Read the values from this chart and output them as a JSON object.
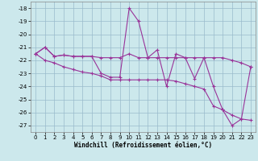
{
  "xlabel": "Windchill (Refroidissement éolien,°C)",
  "bg_color": "#cce8ec",
  "line_color": "#993399",
  "grid_color": "#99bbcc",
  "x_hours": [
    0,
    1,
    2,
    3,
    4,
    5,
    6,
    7,
    8,
    9,
    10,
    11,
    12,
    13,
    14,
    15,
    16,
    17,
    18,
    19,
    20,
    21,
    22,
    23
  ],
  "line_flat_y": [
    -21.5,
    -21.0,
    -21.7,
    -21.6,
    -21.7,
    -21.7,
    -21.7,
    -21.8,
    -21.8,
    -21.8,
    -21.5,
    -21.8,
    -21.8,
    -21.8,
    -21.8,
    -21.8,
    -21.8,
    -21.8,
    -21.8,
    -21.8,
    -21.8,
    -22.0,
    -22.2,
    -22.5
  ],
  "line_spiky_y": [
    -21.5,
    -21.0,
    -21.7,
    -21.6,
    -21.7,
    -21.7,
    -21.7,
    -23.0,
    -23.3,
    -23.3,
    -18.0,
    -19.0,
    -21.8,
    -21.2,
    -24.0,
    -21.5,
    -21.8,
    -23.4,
    -21.8,
    -24.0,
    -25.8,
    -27.0,
    -26.5,
    -22.5
  ],
  "line_diag_y": [
    -21.5,
    -22.0,
    -22.2,
    -22.5,
    -22.7,
    -22.9,
    -23.0,
    -23.2,
    -23.5,
    -23.5,
    -23.5,
    -23.5,
    -23.5,
    -23.5,
    -23.5,
    -23.6,
    -23.8,
    -24.0,
    -24.2,
    -25.5,
    -25.8,
    -26.2,
    -26.5,
    -26.6
  ],
  "ylim": [
    -27.5,
    -17.5
  ],
  "yticks": [
    -27,
    -26,
    -25,
    -24,
    -23,
    -22,
    -21,
    -20,
    -19,
    -18
  ],
  "xlim": [
    -0.5,
    23.5
  ],
  "xticks": [
    0,
    1,
    2,
    3,
    4,
    5,
    6,
    7,
    8,
    9,
    10,
    11,
    12,
    13,
    14,
    15,
    16,
    17,
    18,
    19,
    20,
    21,
    22,
    23
  ]
}
